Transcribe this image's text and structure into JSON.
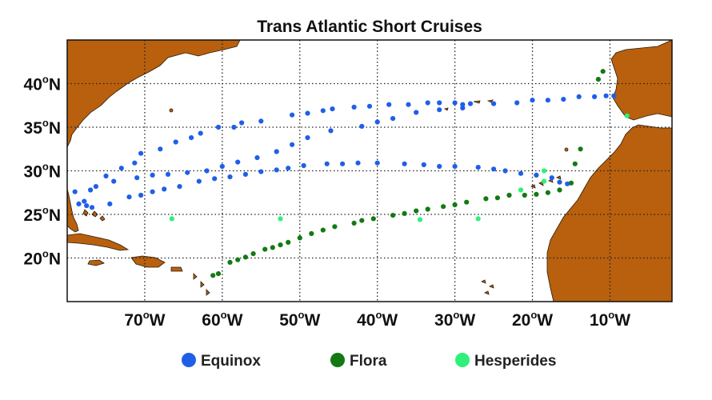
{
  "title": "Trans Atlantic Short Cruises",
  "x_ticks": [
    {
      "lon": -70,
      "deg": "70",
      "hemi": "W"
    },
    {
      "lon": -60,
      "deg": "60",
      "hemi": "W"
    },
    {
      "lon": -50,
      "deg": "50",
      "hemi": "W"
    },
    {
      "lon": -40,
      "deg": "40",
      "hemi": "W"
    },
    {
      "lon": -30,
      "deg": "30",
      "hemi": "W"
    },
    {
      "lon": -20,
      "deg": "20",
      "hemi": "W"
    },
    {
      "lon": -10,
      "deg": "10",
      "hemi": "W"
    }
  ],
  "y_ticks": [
    {
      "lat": 40,
      "deg": "40",
      "hemi": "N"
    },
    {
      "lat": 35,
      "deg": "35",
      "hemi": "N"
    },
    {
      "lat": 30,
      "deg": "30",
      "hemi": "N"
    },
    {
      "lat": 25,
      "deg": "25",
      "hemi": "N"
    },
    {
      "lat": 20,
      "deg": "20",
      "hemi": "N"
    }
  ],
  "colors": {
    "Equinox": "#1F5FE8",
    "Flora": "#137A13",
    "Hesperides": "#2EF07A",
    "land": "#B8600E"
  },
  "chart_data": {
    "type": "scatter",
    "title": "Trans Atlantic Short Cruises",
    "xlim": [
      -80,
      -2
    ],
    "ylim": [
      15,
      45
    ],
    "grid": true,
    "legend_position": "bottom",
    "series": [
      {
        "name": "Equinox",
        "points": [
          [
            -79.0,
            27.6
          ],
          [
            -78.5,
            26.2
          ],
          [
            -77.5,
            26.0
          ],
          [
            -76.8,
            25.8
          ],
          [
            -77.8,
            26.5
          ],
          [
            -76.3,
            28.2
          ],
          [
            -75.0,
            29.4
          ],
          [
            -73.0,
            30.3
          ],
          [
            -71.3,
            30.9
          ],
          [
            -70.5,
            32.0
          ],
          [
            -68.0,
            32.5
          ],
          [
            -66.0,
            33.3
          ],
          [
            -64.0,
            33.8
          ],
          [
            -62.8,
            34.3
          ],
          [
            -60.5,
            35.0
          ],
          [
            -58.5,
            35.0
          ],
          [
            -57.5,
            35.5
          ],
          [
            -55.0,
            35.7
          ],
          [
            -51.0,
            36.4
          ],
          [
            -49.0,
            36.6
          ],
          [
            -47.0,
            36.9
          ],
          [
            -45.8,
            37.1
          ],
          [
            -43.0,
            37.3
          ],
          [
            -41.0,
            37.4
          ],
          [
            -38.5,
            37.6
          ],
          [
            -36.0,
            37.6
          ],
          [
            -33.5,
            37.8
          ],
          [
            -32.0,
            37.8
          ],
          [
            -30.0,
            37.8
          ],
          [
            -29.0,
            37.6
          ],
          [
            -28.0,
            37.7
          ],
          [
            -25.0,
            37.7
          ],
          [
            -22.0,
            37.8
          ],
          [
            -20.0,
            38.1
          ],
          [
            -18.0,
            38.1
          ],
          [
            -16.0,
            38.2
          ],
          [
            -14.0,
            38.5
          ],
          [
            -12.0,
            38.5
          ],
          [
            -10.5,
            38.6
          ],
          [
            -9.5,
            38.6
          ],
          [
            -29.0,
            37.2
          ],
          [
            -32.0,
            37.0
          ],
          [
            -35.0,
            36.7
          ],
          [
            -38.0,
            36.0
          ],
          [
            -40.0,
            35.6
          ],
          [
            -42.0,
            35.1
          ],
          [
            -46.0,
            34.6
          ],
          [
            -49.0,
            33.8
          ],
          [
            -51.0,
            33.0
          ],
          [
            -53.0,
            32.2
          ],
          [
            -55.5,
            31.5
          ],
          [
            -58.0,
            31.0
          ],
          [
            -60.0,
            30.5
          ],
          [
            -62.0,
            30.0
          ],
          [
            -64.5,
            29.8
          ],
          [
            -67.0,
            29.6
          ],
          [
            -69.0,
            29.5
          ],
          [
            -71.0,
            29.2
          ],
          [
            -74.0,
            28.8
          ],
          [
            -77.0,
            27.8
          ],
          [
            -74.5,
            26.2
          ],
          [
            -72.0,
            27.0
          ],
          [
            -70.5,
            27.2
          ],
          [
            -69.0,
            27.6
          ],
          [
            -67.5,
            27.9
          ],
          [
            -65.5,
            28.2
          ],
          [
            -63.0,
            28.8
          ],
          [
            -61.0,
            29.1
          ],
          [
            -59.0,
            29.3
          ],
          [
            -57.0,
            29.6
          ],
          [
            -55.0,
            29.9
          ],
          [
            -53.0,
            30.1
          ],
          [
            -51.5,
            30.3
          ],
          [
            -49.5,
            30.6
          ],
          [
            -46.5,
            30.8
          ],
          [
            -44.5,
            30.8
          ],
          [
            -42.5,
            30.9
          ],
          [
            -40.0,
            30.9
          ],
          [
            -36.5,
            30.8
          ],
          [
            -34.0,
            30.7
          ],
          [
            -32.0,
            30.5
          ],
          [
            -30.0,
            30.5
          ],
          [
            -27.0,
            30.4
          ],
          [
            -25.0,
            30.2
          ],
          [
            -23.5,
            30.0
          ],
          [
            -21.5,
            29.7
          ],
          [
            -19.5,
            29.5
          ],
          [
            -17.5,
            29.2
          ],
          [
            -16.5,
            28.7
          ],
          [
            -15.5,
            28.5
          ]
        ]
      },
      {
        "name": "Flora",
        "points": [
          [
            -60.5,
            18.2
          ],
          [
            -61.2,
            18.0
          ],
          [
            -59.0,
            19.5
          ],
          [
            -58.0,
            19.8
          ],
          [
            -57.0,
            20.1
          ],
          [
            -56.0,
            20.5
          ],
          [
            -54.5,
            21.0
          ],
          [
            -53.5,
            21.2
          ],
          [
            -52.5,
            21.5
          ],
          [
            -51.5,
            21.8
          ],
          [
            -50.0,
            22.3
          ],
          [
            -48.5,
            22.8
          ],
          [
            -47.0,
            23.2
          ],
          [
            -45.5,
            23.6
          ],
          [
            -43.0,
            24.0
          ],
          [
            -42.0,
            24.3
          ],
          [
            -40.5,
            24.5
          ],
          [
            -38.0,
            24.9
          ],
          [
            -36.5,
            25.1
          ],
          [
            -35.0,
            25.4
          ],
          [
            -33.5,
            25.6
          ],
          [
            -31.5,
            25.9
          ],
          [
            -30.0,
            26.1
          ],
          [
            -28.5,
            26.4
          ],
          [
            -26.0,
            26.8
          ],
          [
            -24.5,
            26.9
          ],
          [
            -23.0,
            27.2
          ],
          [
            -21.0,
            27.2
          ],
          [
            -19.5,
            27.3
          ],
          [
            -18.0,
            27.5
          ],
          [
            -16.5,
            27.8
          ],
          [
            -15.0,
            28.6
          ],
          [
            -14.5,
            30.8
          ],
          [
            -13.8,
            32.5
          ],
          [
            -11.5,
            40.5
          ],
          [
            -10.9,
            41.4
          ]
        ]
      },
      {
        "name": "Hesperides",
        "points": [
          [
            -66.5,
            24.5
          ],
          [
            -52.5,
            24.5
          ],
          [
            -34.5,
            24.4
          ],
          [
            -27.0,
            24.5
          ],
          [
            -21.5,
            27.8
          ],
          [
            -18.5,
            30.0
          ],
          [
            -18.5,
            28.8
          ],
          [
            -7.8,
            36.3
          ]
        ]
      }
    ]
  },
  "legend": [
    {
      "label": "Equinox",
      "color": "#1F5FE8"
    },
    {
      "label": "Flora",
      "color": "#137A13"
    },
    {
      "label": "Hesperides",
      "color": "#2EF07A"
    }
  ]
}
